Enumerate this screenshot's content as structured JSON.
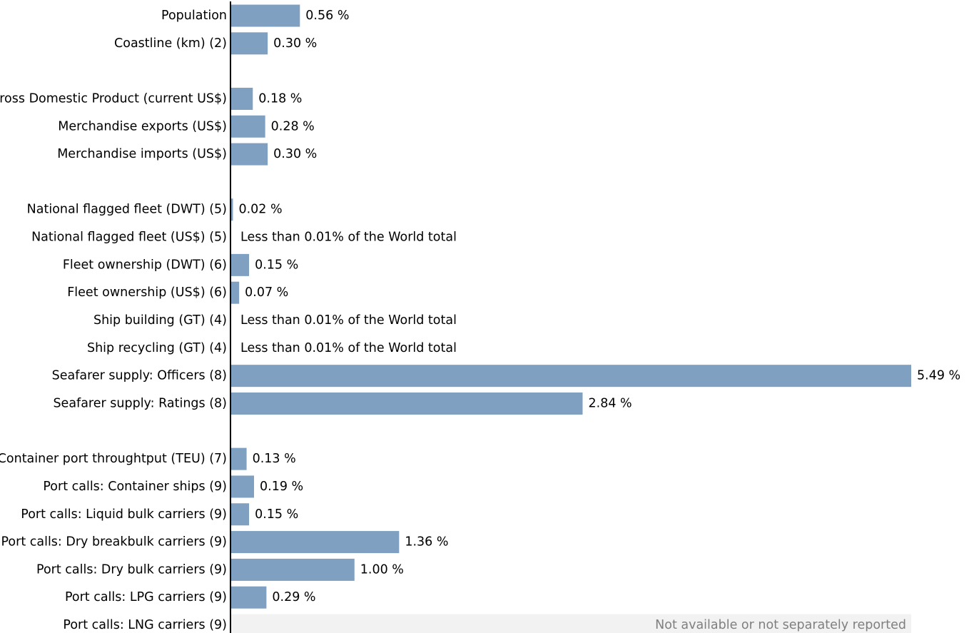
{
  "chart_data": {
    "type": "bar",
    "orientation": "horizontal",
    "unit": "%",
    "xlim": [
      0,
      5.49
    ],
    "bar_color": "#7fa0c1",
    "na_band_color": "#f2f2f2",
    "axis_color": "#000000",
    "grid": false,
    "legend": "none",
    "rows": [
      {
        "label": "Population",
        "value": 0.56,
        "value_label": "0.56 %"
      },
      {
        "label": "Coastline (km) (2)",
        "value": 0.3,
        "value_label": "0.30 %"
      },
      {
        "label": "",
        "value": null,
        "value_label": ""
      },
      {
        "label": "Gross Domestic Product (current US$)",
        "value": 0.18,
        "value_label": "0.18 %"
      },
      {
        "label": "Merchandise exports (US$)",
        "value": 0.28,
        "value_label": "0.28 %"
      },
      {
        "label": "Merchandise imports (US$)",
        "value": 0.3,
        "value_label": "0.30 %"
      },
      {
        "label": "",
        "value": null,
        "value_label": ""
      },
      {
        "label": "National flagged fleet (DWT) (5)",
        "value": 0.02,
        "value_label": "0.02 %"
      },
      {
        "label": "National flagged fleet (US$) (5)",
        "value": 0,
        "value_label": "Less than 0.01% of the World total"
      },
      {
        "label": "Fleet ownership (DWT) (6)",
        "value": 0.15,
        "value_label": "0.15 %"
      },
      {
        "label": "Fleet ownership (US$) (6)",
        "value": 0.07,
        "value_label": "0.07 %"
      },
      {
        "label": "Ship building (GT) (4)",
        "value": 0,
        "value_label": "Less than 0.01% of the World total"
      },
      {
        "label": "Ship recycling (GT) (4)",
        "value": 0,
        "value_label": "Less than 0.01% of the World total"
      },
      {
        "label": "Seafarer supply: Officers (8)",
        "value": 5.49,
        "value_label": "5.49 %"
      },
      {
        "label": "Seafarer supply: Ratings (8)",
        "value": 2.84,
        "value_label": "2.84 %"
      },
      {
        "label": "",
        "value": null,
        "value_label": ""
      },
      {
        "label": "Container port throughtput (TEU) (7)",
        "value": 0.13,
        "value_label": "0.13 %"
      },
      {
        "label": "Port calls: Container ships (9)",
        "value": 0.19,
        "value_label": "0.19 %"
      },
      {
        "label": "Port calls: Liquid bulk carriers (9)",
        "value": 0.15,
        "value_label": "0.15 %"
      },
      {
        "label": "Port calls: Dry breakbulk carriers (9)",
        "value": 1.36,
        "value_label": "1.36 %"
      },
      {
        "label": "Port calls: Dry bulk carriers (9)",
        "value": 1.0,
        "value_label": "1.00 %"
      },
      {
        "label": "Port calls: LPG carriers (9)",
        "value": 0.29,
        "value_label": "0.29 %"
      },
      {
        "label": "Port calls: LNG carriers (9)",
        "value": null,
        "not_available": true,
        "value_label": "Not available or not separately reported"
      }
    ]
  }
}
